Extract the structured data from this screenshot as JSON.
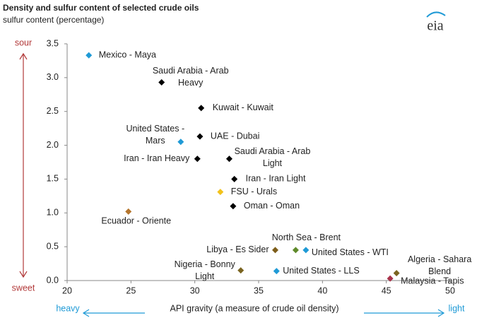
{
  "chart_data": {
    "type": "scatter",
    "title": "Density and sulfur content of selected crude oils",
    "ylabel": "sulfur content (percentage)",
    "xlabel": "API gravity (a measure of crude oil density)",
    "logo": "eia",
    "y_top_label": "sour",
    "y_bottom_label": "sweet",
    "x_left_label": "heavy",
    "x_right_label": "light",
    "xlim": [
      20,
      50
    ],
    "xticks": [
      20,
      25,
      30,
      35,
      40,
      45,
      50
    ],
    "ylim": [
      0,
      3.5
    ],
    "yticks": [
      {
        "value": 0,
        "label": "0.0"
      },
      0.5,
      {
        "value": 1,
        "label": "1.0"
      },
      1.5,
      {
        "value": 2,
        "label": "2.0"
      },
      2.5,
      {
        "value": 3,
        "label": "3.0"
      },
      3.5
    ],
    "points": [
      {
        "label": [
          "Mexico - Maya"
        ],
        "x": 21.7,
        "y": 3.33,
        "color": "#1f9ad6"
      },
      {
        "label": [
          "Saudi Arabia - Arab",
          "Heavy"
        ],
        "x": 27.4,
        "y": 2.93,
        "color": "#000000"
      },
      {
        "label": [
          "Kuwait - Kuwait"
        ],
        "x": 30.5,
        "y": 2.55,
        "color": "#000000"
      },
      {
        "label": [
          "UAE - Dubai"
        ],
        "x": 30.4,
        "y": 2.13,
        "color": "#000000"
      },
      {
        "label": [
          "United States -",
          "Mars"
        ],
        "x": 28.9,
        "y": 2.05,
        "color": "#1f9ad6"
      },
      {
        "label": [
          "Iran - Iran Heavy"
        ],
        "x": 30.2,
        "y": 1.8,
        "color": "#000000"
      },
      {
        "label": [
          "Saudi Arabia - Arab",
          "Light"
        ],
        "x": 32.7,
        "y": 1.8,
        "color": "#000000"
      },
      {
        "label": [
          "Iran - Iran Light"
        ],
        "x": 33.1,
        "y": 1.5,
        "color": "#000000"
      },
      {
        "label": [
          "FSU - Urals"
        ],
        "x": 32.0,
        "y": 1.31,
        "color": "#f2c21b"
      },
      {
        "label": [
          "Oman - Oman"
        ],
        "x": 33.0,
        "y": 1.1,
        "color": "#000000"
      },
      {
        "label": [
          "Ecuador - Oriente"
        ],
        "x": 24.8,
        "y": 1.02,
        "color": "#b5762e"
      },
      {
        "label": [
          "North Sea - Brent"
        ],
        "x": 37.9,
        "y": 0.45,
        "color": "#5f8a2a"
      },
      {
        "label": [
          "Libya - Es Sider"
        ],
        "x": 36.3,
        "y": 0.45,
        "color": "#7d5d1a"
      },
      {
        "label": [
          "United States - WTI"
        ],
        "x": 38.7,
        "y": 0.45,
        "color": "#1f9ad6"
      },
      {
        "label": [
          "Nigeria - Bonny",
          "Light"
        ],
        "x": 33.6,
        "y": 0.15,
        "color": "#7a6420"
      },
      {
        "label": [
          "United States - LLS"
        ],
        "x": 36.4,
        "y": 0.14,
        "color": "#1f9ad6"
      },
      {
        "label": [
          "Algeria - Sahara",
          "Blend"
        ],
        "x": 45.8,
        "y": 0.11,
        "color": "#7a6420"
      },
      {
        "label": [
          "Malaysia - Tapis"
        ],
        "x": 45.3,
        "y": 0.03,
        "color": "#a8324a"
      }
    ]
  }
}
